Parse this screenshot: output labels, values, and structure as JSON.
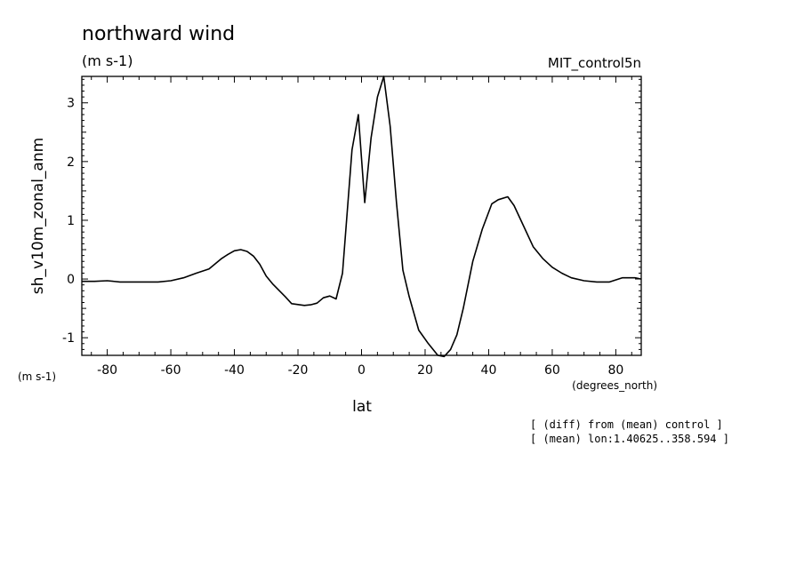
{
  "chart_data": {
    "type": "line",
    "title": "northward wind",
    "subtitle": "(m s-1)",
    "run_label": "MIT_control5n",
    "ylabel": "sh_v10m_zonal_anm",
    "y_units": "(m s-1)",
    "xlabel": "lat",
    "x_units": "(degrees_north)",
    "xlim": [
      -88,
      88
    ],
    "ylim": [
      -1.3,
      3.45
    ],
    "x_ticks": [
      -80,
      -60,
      -40,
      -20,
      0,
      20,
      40,
      60,
      80
    ],
    "x_tick_labels": [
      "-80",
      "-60",
      "-40",
      "-20",
      "0",
      "20",
      "40",
      "60",
      "80"
    ],
    "y_ticks": [
      -1,
      0,
      1,
      2,
      3
    ],
    "y_tick_labels": [
      "-1",
      "0",
      "1",
      "2",
      "3"
    ],
    "grid": false,
    "color": "#000000",
    "x": [
      -88,
      -84,
      -80,
      -76,
      -72,
      -68,
      -64,
      -60,
      -56,
      -52,
      -48,
      -44,
      -42,
      -40,
      -38,
      -36,
      -34,
      -32,
      -30,
      -28,
      -24,
      -22,
      -18,
      -16,
      -14,
      -12,
      -10,
      -8,
      -6,
      -3,
      -1,
      1,
      3,
      5,
      7,
      9,
      11,
      13,
      15,
      18,
      21,
      24,
      26,
      28,
      30,
      32,
      35,
      38,
      41,
      43,
      46,
      48,
      51,
      54,
      57,
      60,
      63,
      66,
      70,
      74,
      78,
      82,
      86,
      88
    ],
    "y": [
      -0.04,
      -0.04,
      -0.03,
      -0.05,
      -0.05,
      -0.05,
      -0.05,
      -0.03,
      0.02,
      0.1,
      0.17,
      0.35,
      0.42,
      0.48,
      0.5,
      0.47,
      0.39,
      0.25,
      0.05,
      -0.08,
      -0.3,
      -0.42,
      -0.45,
      -0.44,
      -0.41,
      -0.32,
      -0.29,
      -0.34,
      0.1,
      2.2,
      2.8,
      1.3,
      2.4,
      3.1,
      3.45,
      2.6,
      1.3,
      0.15,
      -0.3,
      -0.87,
      -1.1,
      -1.3,
      -1.32,
      -1.2,
      -0.95,
      -0.5,
      0.3,
      0.85,
      1.28,
      1.35,
      1.4,
      1.25,
      0.9,
      0.55,
      0.35,
      0.2,
      0.1,
      0.02,
      -0.03,
      -0.05,
      -0.05,
      0.02,
      0.02,
      0.0
    ],
    "notes": [
      "[ (diff) from (mean) control ]",
      "[ (mean) lon:1.40625..358.594 ]"
    ]
  }
}
